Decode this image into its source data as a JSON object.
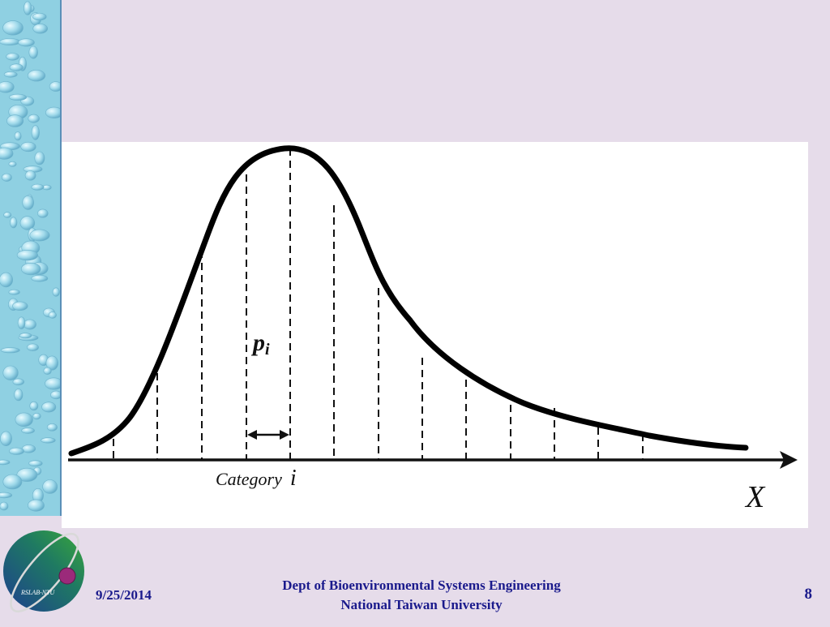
{
  "diagram": {
    "label_p": "p",
    "label_p_sub": "i",
    "label_category": "Category",
    "label_category_index": "i",
    "label_axis": "X"
  },
  "footer": {
    "date": "9/25/2014",
    "dept_line1": "Dept of Bioenvironmental Systems Engineering",
    "dept_line2": "National Taiwan University",
    "page_number": "8"
  },
  "logo": {
    "text": "RSLAB-NTU"
  },
  "colors": {
    "background": "#e6dcea",
    "side_strip": "#8fd0e2",
    "footer_text": "#1a1a8c",
    "logo_blue": "#1d3f8f",
    "logo_green": "#2e9a3c",
    "logo_dot": "#9b2a7a"
  }
}
